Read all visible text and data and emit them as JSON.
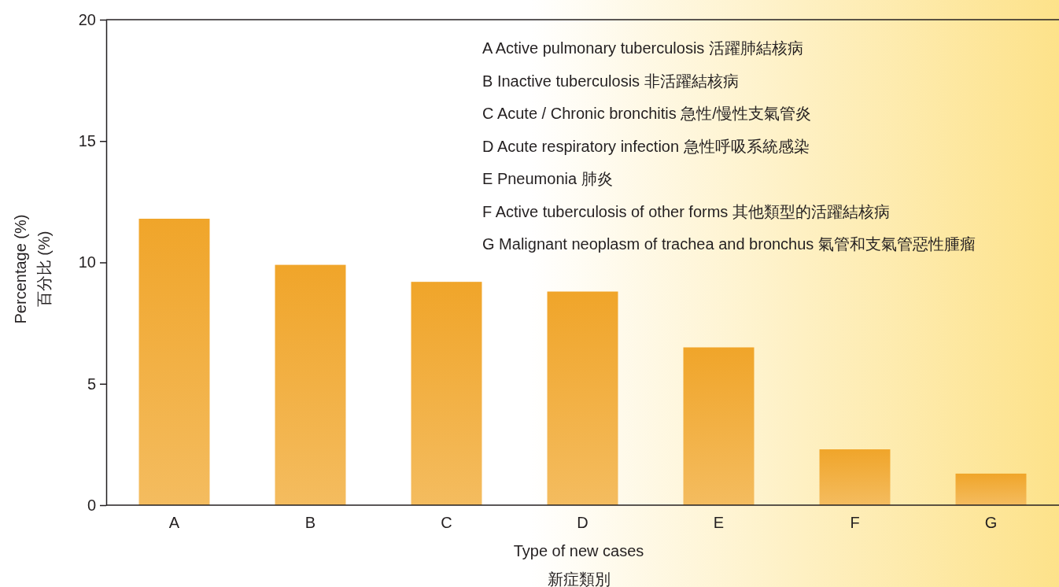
{
  "chart_data": {
    "type": "bar",
    "categories": [
      "A",
      "B",
      "C",
      "D",
      "E",
      "F",
      "G"
    ],
    "values": [
      11.8,
      9.9,
      9.2,
      8.8,
      6.5,
      2.3,
      1.3
    ],
    "color": "#f0a52a",
    "ylim": [
      0,
      20
    ],
    "yticks": [
      0,
      5,
      10,
      15,
      20
    ],
    "xlabel": "Type of new cases\n新症類別",
    "ylabel": "Percentage (%)\n百分比 (%)",
    "grid": false,
    "annotations": [
      "A  Active pulmonary tuberculosis 活躍肺結核病",
      "B  Inactive tuberculosis 非活躍結核病",
      "C  Acute / Chronic bronchitis 急性/慢性支氣管炎",
      "D  Acute respiratory infection 急性呼吸系統感染",
      "E  Pneumonia 肺炎",
      "F  Active tuberculosis of other forms 其他類型的活躍結核病",
      "G  Malignant neoplasm of trachea and bronchus 氣管和支氣管惡性腫瘤"
    ]
  }
}
